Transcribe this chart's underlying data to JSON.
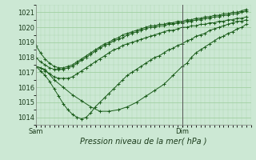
{
  "xlabel": "Pression niveau de la mer( hPa )",
  "bg_color": "#cce8d4",
  "grid_color": "#99cc99",
  "line_color": "#1a5c1a",
  "ylim": [
    1013.5,
    1021.5
  ],
  "xlim": [
    0,
    47
  ],
  "dim_x": 32,
  "yticks": [
    1014,
    1015,
    1016,
    1017,
    1018,
    1019,
    1020,
    1021
  ],
  "series": [
    {
      "x": [
        0,
        1,
        2,
        3,
        4,
        5,
        6,
        7,
        8,
        9,
        10,
        11,
        12,
        13,
        14,
        15,
        16,
        17,
        18,
        19,
        20,
        21,
        22,
        23,
        24,
        25,
        26,
        27,
        28,
        29,
        30,
        31,
        32,
        33,
        34,
        35,
        36,
        37,
        38,
        39,
        40,
        41,
        42,
        43,
        44,
        45,
        46
      ],
      "y": [
        1018.8,
        1018.3,
        1017.9,
        1017.6,
        1017.4,
        1017.3,
        1017.3,
        1017.4,
        1017.5,
        1017.7,
        1017.9,
        1018.1,
        1018.3,
        1018.5,
        1018.7,
        1018.9,
        1019.0,
        1019.2,
        1019.3,
        1019.5,
        1019.6,
        1019.7,
        1019.8,
        1019.9,
        1020.0,
        1020.1,
        1020.1,
        1020.2,
        1020.2,
        1020.3,
        1020.3,
        1020.4,
        1020.4,
        1020.5,
        1020.5,
        1020.6,
        1020.6,
        1020.7,
        1020.7,
        1020.8,
        1020.8,
        1020.9,
        1020.9,
        1021.0,
        1021.0,
        1021.1,
        1021.2
      ]
    },
    {
      "x": [
        0,
        1,
        2,
        3,
        4,
        5,
        6,
        7,
        8,
        9,
        10,
        11,
        12,
        13,
        14,
        15,
        16,
        17,
        18,
        19,
        20,
        21,
        22,
        23,
        24,
        25,
        26,
        27,
        28,
        29,
        30,
        31,
        32,
        33,
        34,
        35,
        36,
        37,
        38,
        39,
        40,
        41,
        42,
        43,
        44,
        45,
        46
      ],
      "y": [
        1018.0,
        1017.7,
        1017.5,
        1017.3,
        1017.2,
        1017.2,
        1017.2,
        1017.3,
        1017.4,
        1017.6,
        1017.8,
        1018.0,
        1018.2,
        1018.4,
        1018.6,
        1018.8,
        1018.9,
        1019.1,
        1019.2,
        1019.3,
        1019.5,
        1019.6,
        1019.7,
        1019.8,
        1019.9,
        1020.0,
        1020.0,
        1020.1,
        1020.1,
        1020.2,
        1020.2,
        1020.3,
        1020.3,
        1020.4,
        1020.4,
        1020.5,
        1020.5,
        1020.6,
        1020.6,
        1020.7,
        1020.7,
        1020.8,
        1020.8,
        1020.9,
        1020.9,
        1021.0,
        1021.1
      ]
    },
    {
      "x": [
        0,
        1,
        2,
        3,
        4,
        5,
        6,
        7,
        8,
        9,
        10,
        11,
        12,
        13,
        14,
        15,
        16,
        17,
        18,
        19,
        20,
        21,
        22,
        23,
        24,
        25,
        26,
        27,
        28,
        29,
        30,
        31,
        32,
        33,
        34,
        35,
        36,
        37,
        38,
        39,
        40,
        41,
        42,
        43,
        44,
        45,
        46
      ],
      "y": [
        1017.4,
        1017.3,
        1017.1,
        1016.9,
        1016.7,
        1016.6,
        1016.6,
        1016.6,
        1016.7,
        1016.9,
        1017.1,
        1017.3,
        1017.5,
        1017.7,
        1017.9,
        1018.1,
        1018.3,
        1018.5,
        1018.6,
        1018.8,
        1018.9,
        1019.0,
        1019.1,
        1019.2,
        1019.3,
        1019.4,
        1019.5,
        1019.6,
        1019.7,
        1019.8,
        1019.8,
        1019.9,
        1020.0,
        1020.0,
        1020.1,
        1020.1,
        1020.2,
        1020.2,
        1020.3,
        1020.3,
        1020.4,
        1020.4,
        1020.5,
        1020.5,
        1020.6,
        1020.6,
        1020.7
      ]
    },
    {
      "x": [
        0,
        2,
        4,
        6,
        8,
        10,
        12,
        14,
        16,
        18,
        20,
        22,
        24,
        26,
        28,
        30,
        32,
        33,
        34,
        35,
        36,
        37,
        38,
        39,
        40,
        41,
        42,
        43,
        44,
        45,
        46
      ],
      "y": [
        1017.4,
        1017.2,
        1016.5,
        1016.0,
        1015.5,
        1015.1,
        1014.7,
        1014.4,
        1014.4,
        1014.5,
        1014.7,
        1015.0,
        1015.4,
        1015.8,
        1016.2,
        1016.8,
        1017.4,
        1017.6,
        1018.0,
        1018.3,
        1018.5,
        1018.7,
        1018.9,
        1019.1,
        1019.3,
        1019.4,
        1019.6,
        1019.7,
        1019.9,
        1020.0,
        1020.2
      ]
    },
    {
      "x": [
        0,
        1,
        2,
        3,
        4,
        5,
        6,
        7,
        8,
        9,
        10,
        11,
        12,
        13,
        14,
        15,
        16,
        17,
        18,
        19,
        20,
        21,
        22,
        23,
        24,
        25,
        26,
        27,
        28,
        29,
        30,
        31,
        32,
        33,
        34,
        35,
        36,
        37,
        38,
        39,
        40,
        41,
        42,
        43,
        44,
        45,
        46
      ],
      "y": [
        1017.4,
        1017.1,
        1016.8,
        1016.4,
        1015.9,
        1015.4,
        1014.9,
        1014.5,
        1014.2,
        1014.0,
        1013.9,
        1014.0,
        1014.3,
        1014.7,
        1015.0,
        1015.3,
        1015.6,
        1015.9,
        1016.2,
        1016.5,
        1016.8,
        1017.0,
        1017.2,
        1017.4,
        1017.6,
        1017.8,
        1018.0,
        1018.1,
        1018.3,
        1018.5,
        1018.6,
        1018.8,
        1018.9,
        1019.1,
        1019.2,
        1019.4,
        1019.5,
        1019.6,
        1019.8,
        1019.9,
        1020.0,
        1020.1,
        1020.2,
        1020.3,
        1020.4,
        1020.4,
        1020.5
      ]
    }
  ],
  "xtick_labels": [
    "Sam",
    "Dim"
  ],
  "xtick_positions": [
    0,
    32
  ],
  "xlabel_fontsize": 7,
  "tick_fontsize": 6
}
